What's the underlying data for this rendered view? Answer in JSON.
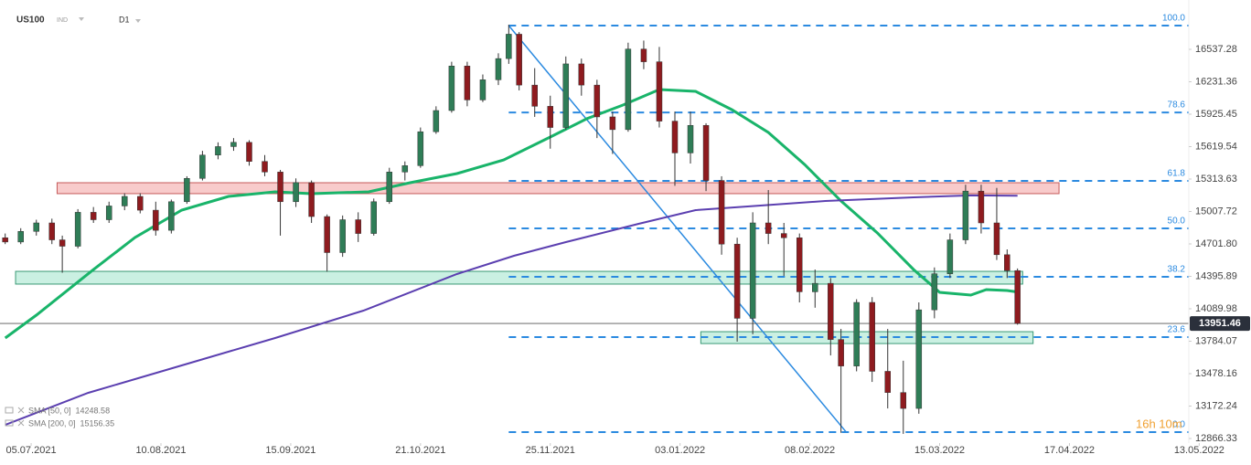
{
  "chart_data": {
    "type": "candlestick",
    "symbol": "US100",
    "market": "IND",
    "interval": "D1",
    "up_color": "#2f7d57",
    "down_color": "#8e1b1f",
    "wick_color": "#333333",
    "x": [
      -5,
      -2,
      1,
      4,
      6,
      9,
      12,
      15,
      18,
      21,
      24,
      27,
      30,
      33,
      36,
      39,
      42,
      45,
      48,
      51,
      54,
      57,
      60,
      63,
      66,
      69,
      72,
      75,
      78,
      81,
      84,
      87,
      90,
      92,
      94,
      97,
      100,
      103,
      106,
      109,
      112,
      115,
      118,
      121,
      124,
      127,
      130,
      133,
      136,
      139,
      142,
      145,
      148,
      151,
      154,
      156,
      159,
      162,
      165,
      168,
      171,
      174,
      177,
      180,
      183,
      186,
      188,
      190
    ],
    "ohlc": [
      [
        14760,
        14800,
        14700,
        14720
      ],
      [
        14720,
        14850,
        14700,
        14820
      ],
      [
        14820,
        14930,
        14780,
        14900
      ],
      [
        14900,
        14940,
        14700,
        14740
      ],
      [
        14740,
        14780,
        14430,
        14680
      ],
      [
        14680,
        15030,
        14660,
        15000
      ],
      [
        15000,
        15050,
        14900,
        14930
      ],
      [
        14930,
        15100,
        14900,
        15060
      ],
      [
        15060,
        15180,
        15020,
        15150
      ],
      [
        15150,
        15180,
        14990,
        15020
      ],
      [
        15020,
        15100,
        14780,
        14830
      ],
      [
        14830,
        15120,
        14800,
        15100
      ],
      [
        15100,
        15340,
        15080,
        15320
      ],
      [
        15320,
        15580,
        15300,
        15540
      ],
      [
        15540,
        15660,
        15500,
        15620
      ],
      [
        15620,
        15700,
        15580,
        15660
      ],
      [
        15660,
        15680,
        15440,
        15480
      ],
      [
        15480,
        15540,
        15340,
        15380
      ],
      [
        15380,
        15400,
        14780,
        15100
      ],
      [
        15100,
        15320,
        15050,
        15280
      ],
      [
        15280,
        15300,
        14900,
        14960
      ],
      [
        14960,
        14980,
        14440,
        14620
      ],
      [
        14620,
        14970,
        14580,
        14930
      ],
      [
        14930,
        15000,
        14720,
        14800
      ],
      [
        14800,
        15130,
        14780,
        15100
      ],
      [
        15100,
        15420,
        15080,
        15380
      ],
      [
        15380,
        15480,
        15300,
        15440
      ],
      [
        15440,
        15800,
        15420,
        15760
      ],
      [
        15760,
        16000,
        15740,
        15960
      ],
      [
        15960,
        16420,
        15940,
        16380
      ],
      [
        16380,
        16420,
        16000,
        16060
      ],
      [
        16060,
        16300,
        16040,
        16250
      ],
      [
        16250,
        16500,
        16200,
        16450
      ],
      [
        16450,
        16770,
        16400,
        16680
      ],
      [
        16680,
        16700,
        16150,
        16200
      ],
      [
        16200,
        16360,
        15900,
        16000
      ],
      [
        16000,
        16100,
        15600,
        15800
      ],
      [
        15800,
        16470,
        15780,
        16400
      ],
      [
        16400,
        16450,
        16100,
        16200
      ],
      [
        16200,
        16250,
        15700,
        15900
      ],
      [
        15900,
        15950,
        15550,
        15780
      ],
      [
        15780,
        16600,
        15760,
        16540
      ],
      [
        16540,
        16620,
        16350,
        16420
      ],
      [
        16420,
        16560,
        15800,
        15860
      ],
      [
        15860,
        15950,
        15250,
        15560
      ],
      [
        15560,
        15950,
        15460,
        15820
      ],
      [
        15820,
        15840,
        15200,
        15300
      ],
      [
        15300,
        15340,
        14600,
        14700
      ],
      [
        14700,
        14760,
        13780,
        14000
      ],
      [
        14000,
        15000,
        13850,
        14900
      ],
      [
        14900,
        15210,
        14700,
        14800
      ],
      [
        14800,
        14900,
        14400,
        14760
      ],
      [
        14760,
        14800,
        14150,
        14250
      ],
      [
        14250,
        14460,
        14100,
        14330
      ],
      [
        14330,
        14380,
        13650,
        13800
      ],
      [
        13800,
        13900,
        12920,
        13550
      ],
      [
        13550,
        14180,
        13500,
        14150
      ],
      [
        14150,
        14200,
        13400,
        13500
      ],
      [
        13500,
        13900,
        13150,
        13300
      ],
      [
        13300,
        13600,
        12910,
        13150
      ],
      [
        13150,
        14150,
        13100,
        14080
      ],
      [
        14080,
        14480,
        14000,
        14420
      ],
      [
        14420,
        14800,
        14380,
        14740
      ],
      [
        14740,
        15260,
        14700,
        15200
      ],
      [
        15200,
        15260,
        14800,
        14900
      ],
      [
        14900,
        15230,
        14550,
        14600
      ],
      [
        14600,
        14650,
        14380,
        14450
      ],
      [
        14450,
        14470,
        13940,
        13951.46
      ]
    ],
    "series": [
      {
        "name": "SMA [50, 0]",
        "color": "#19b46a",
        "x": [
          -5,
          1,
          12,
          20,
          29,
          38,
          47,
          54,
          65,
          73,
          82,
          91,
          100,
          107,
          114,
          121,
          128,
          135,
          142,
          149,
          156,
          163,
          170,
          175,
          181,
          184,
          188,
          190
        ],
        "values": [
          13814,
          14030,
          14460,
          14762,
          15021,
          15150,
          15193,
          15176,
          15193,
          15279,
          15365,
          15494,
          15710,
          15882,
          16012,
          16158,
          16141,
          15968,
          15753,
          15451,
          15107,
          14805,
          14460,
          14245,
          14219,
          14271,
          14262,
          14248.58
        ]
      },
      {
        "name": "SMA [200, 0]",
        "color": "#5b3fb0",
        "x": [
          -5,
          11,
          29,
          47,
          64,
          82,
          93,
          103,
          117,
          128,
          138,
          153,
          170,
          181,
          190
        ],
        "values": [
          12995,
          13297,
          13556,
          13814,
          14073,
          14417,
          14590,
          14719,
          14891,
          15021,
          15055,
          15107,
          15141,
          15159,
          15156.35
        ]
      }
    ],
    "zones": [
      {
        "high": 15279,
        "low": 15176,
        "x": [
          5,
          198
        ],
        "color": "#f3a9a9",
        "stroke": "#c55a5a"
      },
      {
        "high": 14443,
        "low": 14323,
        "x": [
          -3,
          191
        ],
        "color": "#a6e6cf",
        "stroke": "#3a9a76"
      },
      {
        "high": 13874,
        "low": 13762,
        "x": [
          129,
          193
        ],
        "color": "#a6e6cf",
        "stroke": "#3a9a76"
      }
    ],
    "trend_line": {
      "x": [
        92,
        157
      ],
      "values": [
        16761,
        12927
      ],
      "color": "#2b8ae0"
    },
    "fib_color": "#2b8ae0",
    "fib_levels": [
      {
        "ratio": "100.0",
        "price": 16761
      },
      {
        "ratio": "78.6",
        "price": 15942
      },
      {
        "ratio": "61.8",
        "price": 15296
      },
      {
        "ratio": "50.0",
        "price": 14848
      },
      {
        "ratio": "38.2",
        "price": 14392
      },
      {
        "ratio": "23.6",
        "price": 13823
      },
      {
        "ratio": "0.0",
        "price": 12927
      }
    ],
    "countdown": "16h 10m",
    "xlim": [
      -6,
      223
    ],
    "xticks": [
      {
        "value": 0,
        "label": "05.07.2021"
      },
      {
        "value": 25,
        "label": "10.08.2021"
      },
      {
        "value": 50,
        "label": "15.09.2021"
      },
      {
        "value": 75,
        "label": "21.10.2021"
      },
      {
        "value": 100,
        "label": "25.11.2021"
      },
      {
        "value": 125,
        "label": "03.01.2022"
      },
      {
        "value": 150,
        "label": "08.02.2022"
      },
      {
        "value": 175,
        "label": "15.03.2022"
      },
      {
        "value": 200,
        "label": "17.04.2022"
      },
      {
        "value": 225,
        "label": "13.05.2022"
      }
    ],
    "ylim": [
      12823.2,
      17002.6
    ],
    "yticks": [
      16537.28,
      16231.36,
      15925.45,
      15619.54,
      15313.63,
      15007.72,
      {
        "value": 14701.8,
        "label": "14701.80"
      },
      14395.89,
      14089.98,
      13784.07,
      13478.16,
      13172.24,
      12866.33
    ]
  }
}
